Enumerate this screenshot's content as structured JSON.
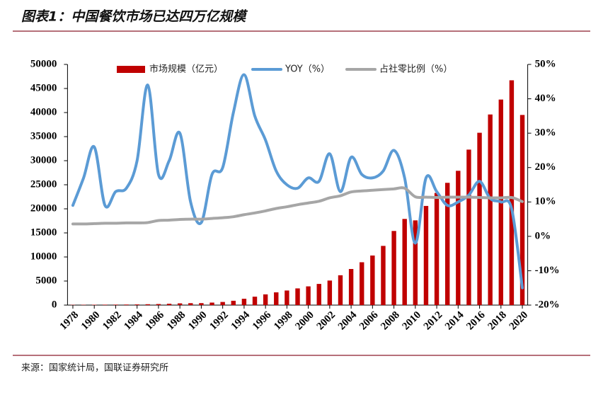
{
  "chart_data": {
    "type": "combo",
    "title": "图表1：中国餐饮市场已达四万亿规模",
    "source": "来源：国家统计局，国联证券研究所",
    "x": [
      1978,
      1979,
      1980,
      1981,
      1982,
      1983,
      1984,
      1985,
      1986,
      1987,
      1988,
      1989,
      1990,
      1991,
      1992,
      1993,
      1994,
      1995,
      1996,
      1997,
      1998,
      1999,
      2000,
      2001,
      2002,
      2003,
      2004,
      2005,
      2006,
      2007,
      2008,
      2009,
      2010,
      2011,
      2012,
      2013,
      2014,
      2015,
      2016,
      2017,
      2018,
      2019,
      2020
    ],
    "xlim": [
      1977.5,
      2020.5
    ],
    "xticks": [
      1978,
      1980,
      1982,
      1984,
      1986,
      1988,
      1990,
      1992,
      1994,
      1996,
      1998,
      2000,
      2002,
      2004,
      2006,
      2008,
      2010,
      2012,
      2014,
      2016,
      2018,
      2020
    ],
    "ylim": [
      0,
      50000
    ],
    "yticks": [
      0,
      5000,
      10000,
      15000,
      20000,
      25000,
      30000,
      35000,
      40000,
      45000,
      50000
    ],
    "y2lim": [
      -20,
      50
    ],
    "y2ticks": [
      {
        "value": -20,
        "label": "-20%"
      },
      {
        "value": -10,
        "label": "-10%"
      },
      {
        "value": 0,
        "label": "0%"
      },
      {
        "value": 10,
        "label": "10%"
      },
      {
        "value": 20,
        "label": "20%"
      },
      {
        "value": 30,
        "label": "30%"
      },
      {
        "value": 40,
        "label": "40%"
      },
      {
        "value": 50,
        "label": "50%"
      }
    ],
    "series": [
      {
        "name": "市场规模（亿元）",
        "type": "bar",
        "color": "#c00000",
        "values": [
          55,
          62,
          75,
          88,
          100,
          115,
          140,
          180,
          220,
          280,
          360,
          400,
          410,
          520,
          650,
          900,
          1320,
          1750,
          2230,
          2650,
          3030,
          3470,
          3890,
          4400,
          5100,
          6200,
          7500,
          8900,
          10300,
          12300,
          15400,
          17900,
          17600,
          20600,
          23300,
          25400,
          27900,
          32300,
          35800,
          39600,
          42700,
          46700,
          39500
        ]
      },
      {
        "name": "YOY（%）",
        "type": "line",
        "axis": "y2",
        "color": "#5b9bd5",
        "values": [
          9,
          17,
          26,
          9,
          13,
          14,
          22,
          44,
          18,
          22,
          30,
          10,
          4,
          18,
          20,
          36,
          47,
          35,
          28,
          19,
          15,
          14,
          17,
          16,
          24,
          13,
          23,
          18,
          17,
          19,
          25,
          17,
          -2,
          17,
          13,
          9,
          10,
          12,
          16,
          11,
          10,
          8,
          -15
        ]
      },
      {
        "name": "占社零比例（%）",
        "type": "line",
        "axis": "y2",
        "color": "#a6a6a6",
        "values": [
          3.6,
          3.6,
          3.7,
          3.8,
          3.8,
          3.9,
          3.9,
          4.0,
          4.6,
          4.7,
          4.9,
          5.0,
          5.0,
          5.2,
          5.4,
          5.7,
          6.3,
          6.8,
          7.4,
          8.1,
          8.6,
          9.2,
          9.7,
          10.2,
          11.2,
          11.8,
          12.9,
          13.2,
          13.4,
          13.6,
          13.8,
          14.0,
          11.5,
          11.4,
          11.3,
          11.4,
          11.4,
          11.4,
          11.3,
          11.2,
          11.2,
          11.3,
          10.1
        ]
      }
    ]
  }
}
